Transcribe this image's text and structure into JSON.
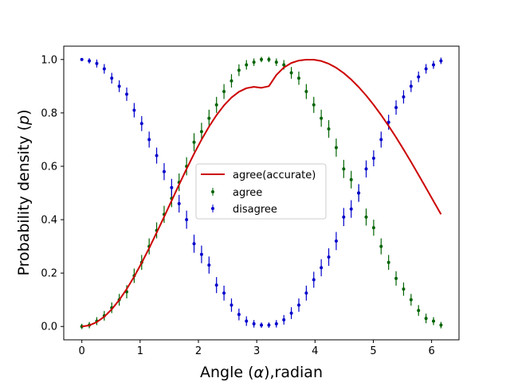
{
  "chart_data": {
    "type": "scatter",
    "title": "",
    "xlabel": "Angle ($\\alpha$),radian",
    "ylabel": "Probability density ($p$)",
    "xlabel_display": [
      "Angle (",
      "α",
      "),radian"
    ],
    "ylabel_display": [
      "Probability density (",
      "p",
      ")"
    ],
    "xlim": [
      -0.31,
      6.47
    ],
    "ylim": [
      -0.05,
      1.05
    ],
    "xticks": [
      0,
      1,
      2,
      3,
      4,
      5,
      6
    ],
    "xtick_labels": [
      "0",
      "1",
      "2",
      "3",
      "4",
      "5",
      "6"
    ],
    "yticks": [
      0.0,
      0.2,
      0.4,
      0.6,
      0.8,
      1.0
    ],
    "ytick_labels": [
      "0.0",
      "0.2",
      "0.4",
      "0.6",
      "0.8",
      "1.0"
    ],
    "grid": false,
    "legend_position": "center",
    "x": [
      0,
      0.1284,
      0.2567,
      0.3851,
      0.5134,
      0.6418,
      0.7701,
      0.8985,
      1.0268,
      1.1552,
      1.2835,
      1.4119,
      1.5403,
      1.6686,
      1.797,
      1.9253,
      2.0537,
      2.182,
      2.3104,
      2.4387,
      2.5671,
      2.6954,
      2.8238,
      2.9521,
      3.0805,
      3.2089,
      3.3372,
      3.4656,
      3.5939,
      3.7223,
      3.8506,
      3.979,
      4.1073,
      4.2357,
      4.364,
      4.4924,
      4.6207,
      4.7491,
      4.8775,
      5.0058,
      5.1342,
      5.2625,
      5.3909,
      5.5192,
      5.6476,
      5.7759,
      5.9043,
      6.0326,
      6.161
    ],
    "series": [
      {
        "name": "agree(accurate)",
        "kind": "line",
        "color": "#cc0000",
        "values": [
          0.0,
          0.0041,
          0.0164,
          0.0366,
          0.0644,
          0.0991,
          0.1403,
          0.187,
          0.2384,
          0.2935,
          0.3514,
          0.4107,
          0.4712,
          0.5314,
          0.5904,
          0.6469,
          0.7,
          0.7485,
          0.7915,
          0.8281,
          0.8575,
          0.8792,
          0.8926,
          0.8975,
          0.894,
          0.9,
          0.942,
          0.97,
          0.987,
          0.996,
          0.9995,
          0.9993,
          0.9944,
          0.9842,
          0.969,
          0.9492,
          0.925,
          0.8969,
          0.8652,
          0.8302,
          0.7921,
          0.7514,
          0.7083,
          0.6631,
          0.6162,
          0.568,
          0.519,
          0.4695,
          0.4201
        ]
      },
      {
        "name": "agree",
        "kind": "errorbar",
        "color": "#006400",
        "values": [
          0.0,
          0.005,
          0.02,
          0.04,
          0.07,
          0.1,
          0.13,
          0.19,
          0.24,
          0.3,
          0.36,
          0.42,
          0.48,
          0.54,
          0.6,
          0.69,
          0.73,
          0.78,
          0.83,
          0.88,
          0.92,
          0.96,
          0.98,
          0.99,
          1.0,
          1.0,
          0.99,
          0.98,
          0.95,
          0.93,
          0.88,
          0.83,
          0.78,
          0.74,
          0.67,
          0.59,
          0.55,
          0.5,
          0.41,
          0.37,
          0.3,
          0.24,
          0.18,
          0.14,
          0.1,
          0.06,
          0.03,
          0.02,
          0.005
        ],
        "errors": [
          0.01,
          0.012,
          0.015,
          0.018,
          0.02,
          0.022,
          0.025,
          0.027,
          0.028,
          0.03,
          0.03,
          0.032,
          0.033,
          0.033,
          0.034,
          0.034,
          0.033,
          0.032,
          0.03,
          0.028,
          0.025,
          0.022,
          0.018,
          0.014,
          0.01,
          0.01,
          0.014,
          0.018,
          0.022,
          0.025,
          0.028,
          0.03,
          0.032,
          0.033,
          0.034,
          0.034,
          0.033,
          0.033,
          0.032,
          0.03,
          0.03,
          0.028,
          0.027,
          0.025,
          0.022,
          0.02,
          0.018,
          0.015,
          0.012
        ]
      },
      {
        "name": "disagree",
        "kind": "errorbar",
        "color": "#0000cc",
        "values": [
          1.0,
          0.995,
          0.985,
          0.965,
          0.93,
          0.9,
          0.87,
          0.81,
          0.76,
          0.7,
          0.64,
          0.58,
          0.52,
          0.46,
          0.4,
          0.31,
          0.27,
          0.23,
          0.155,
          0.125,
          0.08,
          0.045,
          0.02,
          0.01,
          0.005,
          0.005,
          0.01,
          0.025,
          0.05,
          0.08,
          0.125,
          0.175,
          0.22,
          0.26,
          0.32,
          0.41,
          0.44,
          0.5,
          0.59,
          0.63,
          0.7,
          0.765,
          0.82,
          0.86,
          0.9,
          0.935,
          0.965,
          0.98,
          0.995
        ],
        "errors": [
          0.005,
          0.01,
          0.015,
          0.018,
          0.02,
          0.022,
          0.025,
          0.027,
          0.028,
          0.03,
          0.03,
          0.032,
          0.033,
          0.033,
          0.034,
          0.034,
          0.033,
          0.032,
          0.03,
          0.028,
          0.025,
          0.022,
          0.018,
          0.014,
          0.01,
          0.01,
          0.014,
          0.018,
          0.022,
          0.025,
          0.028,
          0.03,
          0.032,
          0.033,
          0.034,
          0.034,
          0.033,
          0.033,
          0.032,
          0.03,
          0.03,
          0.028,
          0.027,
          0.025,
          0.022,
          0.02,
          0.018,
          0.015,
          0.012
        ]
      }
    ]
  }
}
